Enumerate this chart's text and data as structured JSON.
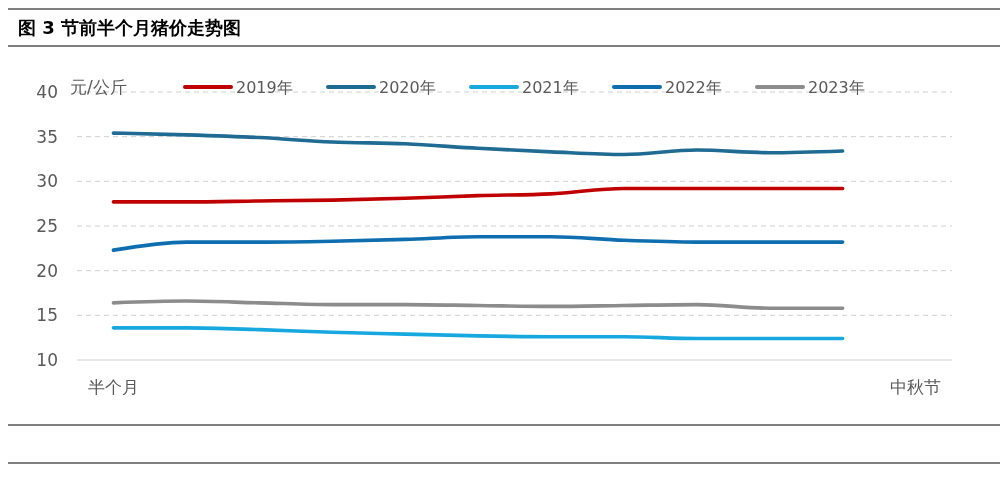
{
  "chart_data": {
    "type": "line",
    "title": "图 3 节前半个月猪价走势图",
    "ylabel": "元/公斤",
    "categories": [
      "半个月",
      null,
      null,
      null,
      null,
      null,
      null,
      null,
      null,
      null,
      null,
      "中秋节"
    ],
    "series": [
      {
        "name": "2019年",
        "color": "#c00000",
        "values": [
          27.7,
          27.7,
          27.8,
          27.9,
          28.1,
          28.4,
          28.6,
          29.2,
          29.2,
          29.2,
          29.2,
          null
        ]
      },
      {
        "name": "2020年",
        "color": "#1f6b93",
        "values": [
          35.4,
          35.2,
          34.9,
          34.4,
          34.2,
          33.7,
          33.3,
          33.0,
          33.5,
          33.2,
          33.4,
          null
        ]
      },
      {
        "name": "2021年",
        "color": "#18a8e0",
        "values": [
          13.6,
          13.6,
          13.4,
          13.1,
          12.9,
          12.7,
          12.6,
          12.6,
          12.4,
          12.4,
          12.4,
          null
        ]
      },
      {
        "name": "2022年",
        "color": "#0f6eb0",
        "values": [
          22.3,
          23.2,
          23.2,
          23.3,
          23.5,
          23.8,
          23.8,
          23.4,
          23.2,
          23.2,
          23.2,
          null
        ]
      },
      {
        "name": "2023年",
        "color": "#8c8c8c",
        "values": [
          16.4,
          16.6,
          16.4,
          16.2,
          16.2,
          16.1,
          16.0,
          16.1,
          16.2,
          15.8,
          15.8,
          null
        ]
      }
    ],
    "ylim": [
      10,
      40
    ],
    "yticks": [
      10,
      15,
      20,
      25,
      30,
      35,
      40
    ],
    "grid": "y",
    "legend": "top"
  }
}
